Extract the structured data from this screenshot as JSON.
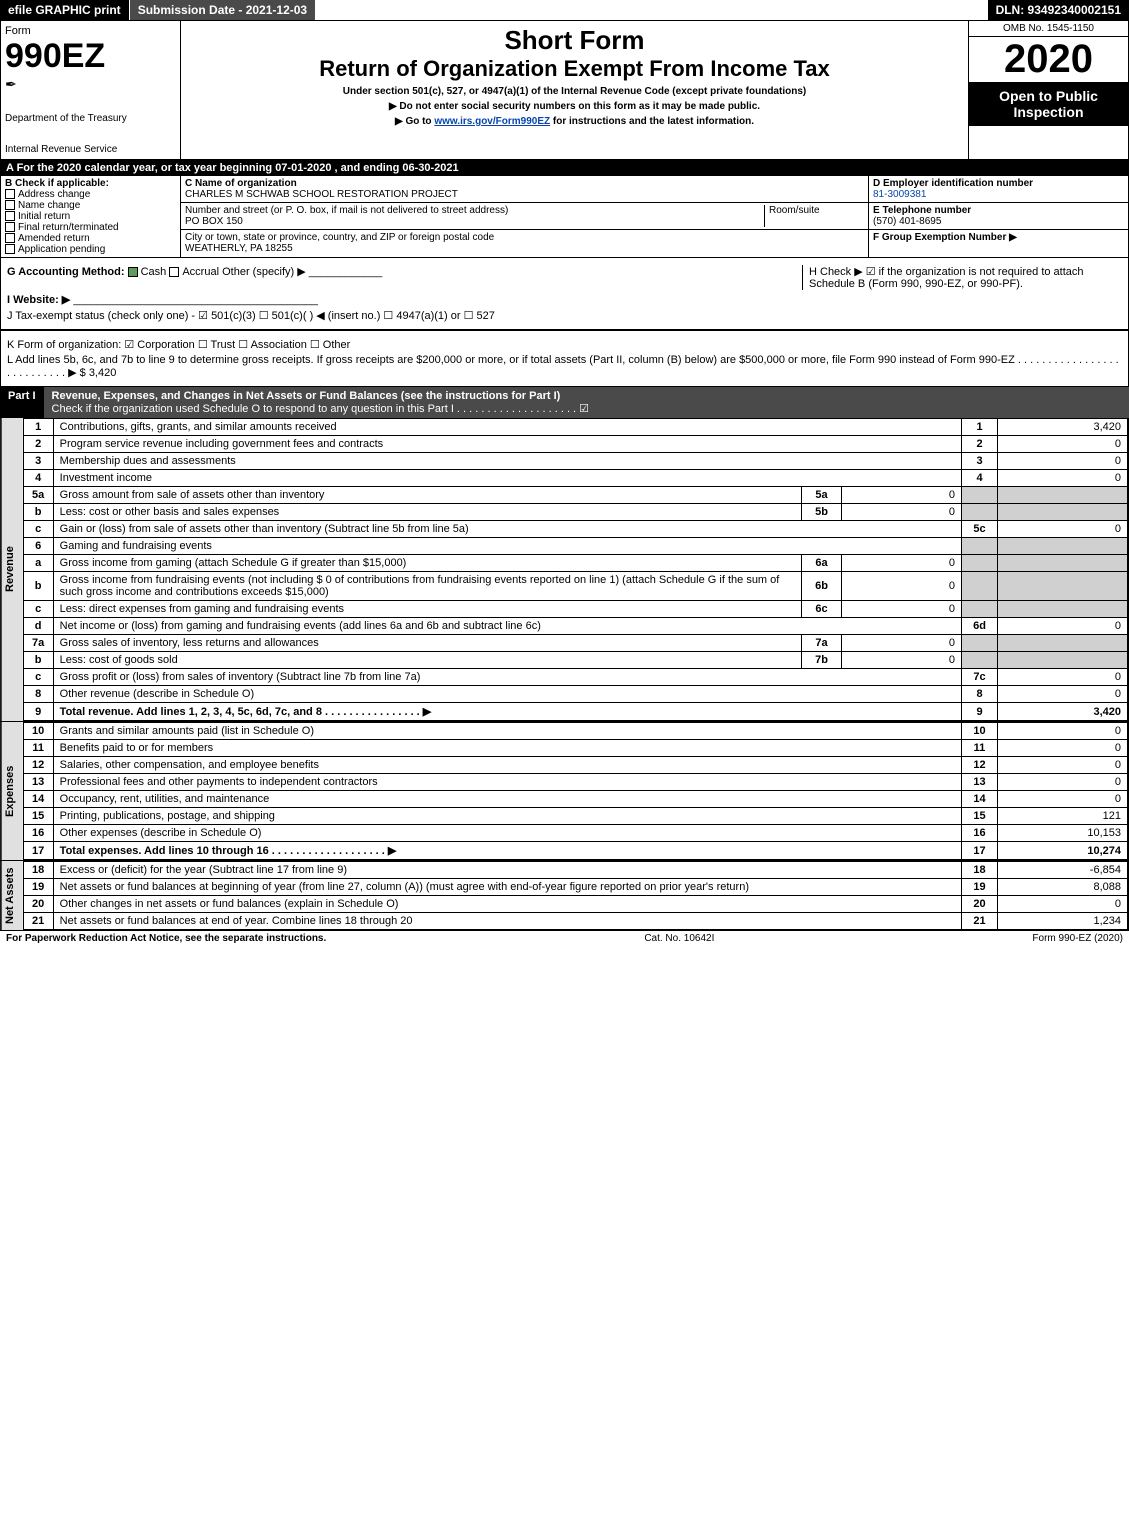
{
  "top": {
    "efile": "efile GRAPHIC print",
    "submission": "Submission Date - 2021-12-03",
    "dln": "DLN: 93492340002151"
  },
  "hdr": {
    "form": "Form",
    "num": "990EZ",
    "dept": "Department of the Treasury",
    "irs": "Internal Revenue Service",
    "title1": "Short Form",
    "title2": "Return of Organization Exempt From Income Tax",
    "subtitle": "Under section 501(c), 527, or 4947(a)(1) of the Internal Revenue Code (except private foundations)",
    "note1": "▶ Do not enter social security numbers on this form as it may be made public.",
    "note2_pre": "▶ Go to ",
    "note2_link": "www.irs.gov/Form990EZ",
    "note2_post": " for instructions and the latest information.",
    "omb": "OMB No. 1545-1150",
    "year": "2020",
    "open": "Open to Public Inspection"
  },
  "a_line": "A For the 2020 calendar year, or tax year beginning 07-01-2020 , and ending 06-30-2021",
  "b": {
    "label": "B Check if applicable:",
    "opts": [
      "Address change",
      "Name change",
      "Initial return",
      "Final return/terminated",
      "Amended return",
      "Application pending"
    ]
  },
  "c": {
    "name_lbl": "C Name of organization",
    "name": "CHARLES M SCHWAB SCHOOL RESTORATION PROJECT",
    "street_lbl": "Number and street (or P. O. box, if mail is not delivered to street address)",
    "street": "PO BOX 150",
    "room_lbl": "Room/suite",
    "city_lbl": "City or town, state or province, country, and ZIP or foreign postal code",
    "city": "WEATHERLY, PA  18255"
  },
  "d": {
    "lbl": "D Employer identification number",
    "val": "81-3009381",
    "e_lbl": "E Telephone number",
    "e_val": "(570) 401-8695",
    "f_lbl": "F Group Exemption Number ▶"
  },
  "gh": {
    "g_lbl": "G Accounting Method:",
    "g_cash": "Cash",
    "g_accrual": "Accrual",
    "g_other": "Other (specify) ▶",
    "h": "H Check ▶ ☑ if the organization is not required to attach Schedule B (Form 990, 990-EZ, or 990-PF)."
  },
  "i_lbl": "I Website: ▶",
  "j": "J Tax-exempt status (check only one) - ☑ 501(c)(3) ☐ 501(c)(  ) ◀ (insert no.) ☐ 4947(a)(1) or ☐ 527",
  "k": "K Form of organization: ☑ Corporation ☐ Trust ☐ Association ☐ Other",
  "l": "L Add lines 5b, 6c, and 7b to line 9 to determine gross receipts. If gross receipts are $200,000 or more, or if total assets (Part II, column (B) below) are $500,000 or more, file Form 990 instead of Form 990-EZ . . . . . . . . . . . . . . . . . . . . . . . . . . . ▶ $ 3,420",
  "part1": {
    "pn": "Part I",
    "title": "Revenue, Expenses, and Changes in Net Assets or Fund Balances (see the instructions for Part I)",
    "check": "Check if the organization used Schedule O to respond to any question in this Part I . . . . . . . . . . . . . . . . . . . . ☑"
  },
  "sides": {
    "revenue": "Revenue",
    "expenses": "Expenses",
    "netassets": "Net Assets"
  },
  "rev": [
    {
      "n": "1",
      "d": "Contributions, gifts, grants, and similar amounts received",
      "ln": "1",
      "v": "3,420"
    },
    {
      "n": "2",
      "d": "Program service revenue including government fees and contracts",
      "ln": "2",
      "v": "0"
    },
    {
      "n": "3",
      "d": "Membership dues and assessments",
      "ln": "3",
      "v": "0"
    },
    {
      "n": "4",
      "d": "Investment income",
      "ln": "4",
      "v": "0"
    },
    {
      "n": "5a",
      "d": "Gross amount from sale of assets other than inventory",
      "sub": "5a",
      "sv": "0"
    },
    {
      "n": "b",
      "d": "Less: cost or other basis and sales expenses",
      "sub": "5b",
      "sv": "0"
    },
    {
      "n": "c",
      "d": "Gain or (loss) from sale of assets other than inventory (Subtract line 5b from line 5a)",
      "ln": "5c",
      "v": "0"
    },
    {
      "n": "6",
      "d": "Gaming and fundraising events"
    },
    {
      "n": "a",
      "d": "Gross income from gaming (attach Schedule G if greater than $15,000)",
      "sub": "6a",
      "sv": "0"
    },
    {
      "n": "b",
      "d": "Gross income from fundraising events (not including $ 0 of contributions from fundraising events reported on line 1) (attach Schedule G if the sum of such gross income and contributions exceeds $15,000)",
      "sub": "6b",
      "sv": "0"
    },
    {
      "n": "c",
      "d": "Less: direct expenses from gaming and fundraising events",
      "sub": "6c",
      "sv": "0"
    },
    {
      "n": "d",
      "d": "Net income or (loss) from gaming and fundraising events (add lines 6a and 6b and subtract line 6c)",
      "ln": "6d",
      "v": "0"
    },
    {
      "n": "7a",
      "d": "Gross sales of inventory, less returns and allowances",
      "sub": "7a",
      "sv": "0"
    },
    {
      "n": "b",
      "d": "Less: cost of goods sold",
      "sub": "7b",
      "sv": "0"
    },
    {
      "n": "c",
      "d": "Gross profit or (loss) from sales of inventory (Subtract line 7b from line 7a)",
      "ln": "7c",
      "v": "0"
    },
    {
      "n": "8",
      "d": "Other revenue (describe in Schedule O)",
      "ln": "8",
      "v": "0"
    },
    {
      "n": "9",
      "d": "Total revenue. Add lines 1, 2, 3, 4, 5c, 6d, 7c, and 8 . . . . . . . . . . . . . . . . ▶",
      "ln": "9",
      "v": "3,420",
      "bold": true
    }
  ],
  "exp": [
    {
      "n": "10",
      "d": "Grants and similar amounts paid (list in Schedule O)",
      "ln": "10",
      "v": "0"
    },
    {
      "n": "11",
      "d": "Benefits paid to or for members",
      "ln": "11",
      "v": "0"
    },
    {
      "n": "12",
      "d": "Salaries, other compensation, and employee benefits",
      "ln": "12",
      "v": "0"
    },
    {
      "n": "13",
      "d": "Professional fees and other payments to independent contractors",
      "ln": "13",
      "v": "0"
    },
    {
      "n": "14",
      "d": "Occupancy, rent, utilities, and maintenance",
      "ln": "14",
      "v": "0"
    },
    {
      "n": "15",
      "d": "Printing, publications, postage, and shipping",
      "ln": "15",
      "v": "121"
    },
    {
      "n": "16",
      "d": "Other expenses (describe in Schedule O)",
      "ln": "16",
      "v": "10,153"
    },
    {
      "n": "17",
      "d": "Total expenses. Add lines 10 through 16 . . . . . . . . . . . . . . . . . . . ▶",
      "ln": "17",
      "v": "10,274",
      "bold": true
    }
  ],
  "na": [
    {
      "n": "18",
      "d": "Excess or (deficit) for the year (Subtract line 17 from line 9)",
      "ln": "18",
      "v": "-6,854"
    },
    {
      "n": "19",
      "d": "Net assets or fund balances at beginning of year (from line 27, column (A)) (must agree with end-of-year figure reported on prior year's return)",
      "ln": "19",
      "v": "8,088"
    },
    {
      "n": "20",
      "d": "Other changes in net assets or fund balances (explain in Schedule O)",
      "ln": "20",
      "v": "0"
    },
    {
      "n": "21",
      "d": "Net assets or fund balances at end of year. Combine lines 18 through 20",
      "ln": "21",
      "v": "1,234"
    }
  ],
  "footer": {
    "left": "For Paperwork Reduction Act Notice, see the separate instructions.",
    "mid": "Cat. No. 10642I",
    "right": "Form 990-EZ (2020)"
  }
}
